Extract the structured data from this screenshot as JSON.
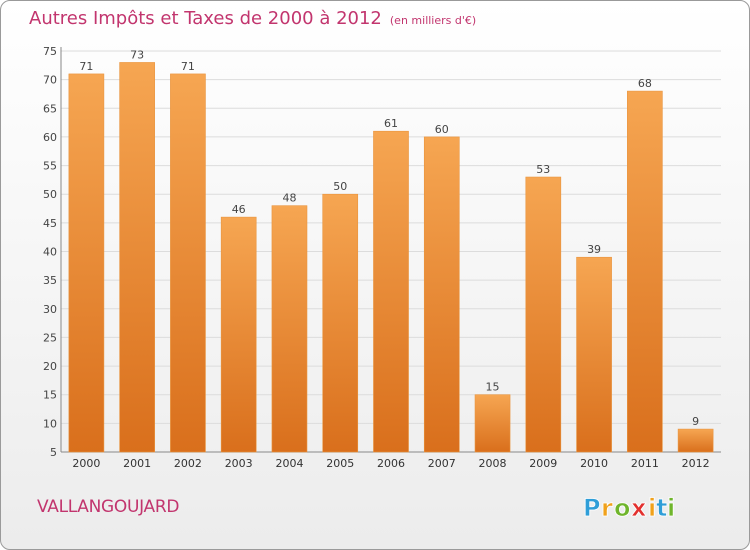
{
  "chart_data": {
    "type": "bar",
    "title": "Autres Impôts et Taxes de 2000 à 2012",
    "subtitle": "(en milliers d'€)",
    "categories": [
      "2000",
      "2001",
      "2002",
      "2003",
      "2004",
      "2005",
      "2006",
      "2007",
      "2008",
      "2009",
      "2010",
      "2011",
      "2012"
    ],
    "values": [
      71,
      73,
      71,
      46,
      48,
      50,
      61,
      60,
      15,
      53,
      39,
      68,
      9
    ],
    "ylim": [
      5,
      75
    ],
    "yticks": [
      5,
      10,
      15,
      20,
      25,
      30,
      35,
      40,
      45,
      50,
      55,
      60,
      65,
      70,
      75
    ],
    "grid": true,
    "bar_color": "#f3a24e",
    "title_color": "#c2356e"
  },
  "footer": {
    "location": "VALLANGOUJARD",
    "logo_letters": [
      "P",
      "r",
      "o",
      "x",
      "i",
      "t",
      "i"
    ],
    "logo_colors": [
      "#2f9ed8",
      "#f0a11b",
      "#6fb52c",
      "#e2302e",
      "#f0a11b",
      "#2f9ed8",
      "#6fb52c"
    ]
  }
}
